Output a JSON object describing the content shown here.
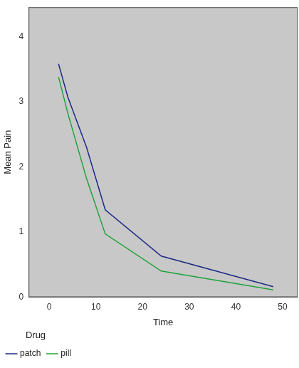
{
  "chart_data": {
    "type": "line",
    "x_label": "Time",
    "y_label": "Mean Pain",
    "legend_title": "Drug",
    "legend": "bottom-left",
    "grid": false,
    "x": [
      2,
      4,
      8,
      12,
      24,
      48
    ],
    "series": [
      {
        "name": "patch",
        "color": "#1c2a85",
        "values": [
          3.58,
          3.07,
          2.3,
          1.34,
          0.63,
          0.16
        ]
      },
      {
        "name": "pill",
        "color": "#1fa33c",
        "values": [
          3.38,
          2.82,
          1.82,
          0.97,
          0.4,
          0.11
        ]
      }
    ],
    "xlim": [
      -4.4,
      53.2
    ],
    "xticks": [
      0,
      10,
      20,
      30,
      40,
      50
    ],
    "ylim": [
      0,
      4.45
    ],
    "yticks": [
      0,
      1,
      2,
      3,
      4
    ]
  }
}
